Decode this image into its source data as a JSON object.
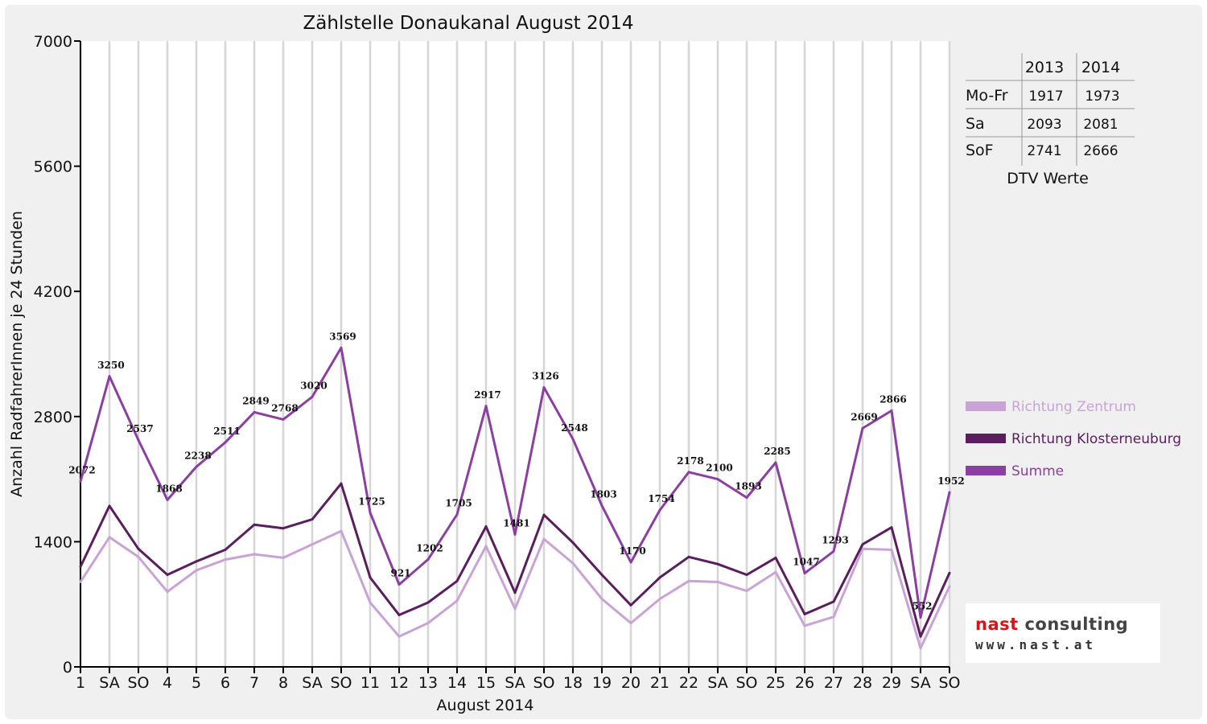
{
  "chart_data": {
    "type": "line",
    "title": "Zählstelle Donaukanal August 2014",
    "xlabel": "August 2014",
    "ylabel": "Anzahl RadfahrerInnen je 24 Stunden",
    "ylim": [
      0,
      7000
    ],
    "yticks": [
      "0",
      "1400",
      "2800",
      "4200",
      "5600",
      "7000"
    ],
    "grid": "vertical",
    "legend_position": "right",
    "categories": [
      "1",
      "SA",
      "SO",
      "4",
      "5",
      "6",
      "7",
      "8",
      "SA",
      "SO",
      "11",
      "12",
      "13",
      "14",
      "15",
      "SA",
      "SO",
      "18",
      "19",
      "20",
      "21",
      "22",
      "SA",
      "SO",
      "25",
      "26",
      "27",
      "28",
      "29",
      "SA",
      "SO"
    ],
    "category_colors": [
      "#111111",
      "#111111",
      "#e00000",
      "#111111",
      "#111111",
      "#111111",
      "#111111",
      "#111111",
      "#111111",
      "#e00000",
      "#111111",
      "#111111",
      "#111111",
      "#111111",
      "#e00000",
      "#111111",
      "#e00000",
      "#111111",
      "#111111",
      "#111111",
      "#111111",
      "#111111",
      "#111111",
      "#e00000",
      "#111111",
      "#111111",
      "#111111",
      "#111111",
      "#111111",
      "#111111",
      "#e00000"
    ],
    "series": [
      {
        "name": "Richtung Zentrum",
        "color": "#c9a3d6",
        "values": [
          950,
          1450,
          1230,
          840,
          1080,
          1200,
          1260,
          1220,
          1370,
          1520,
          720,
          340,
          490,
          740,
          1350,
          650,
          1430,
          1160,
          760,
          490,
          760,
          960,
          950,
          850,
          1060,
          460,
          560,
          1320,
          1310,
          210,
          900
        ]
      },
      {
        "name": "Richtung Klosterneuburg",
        "color": "#5a1e5e",
        "values": [
          1120,
          1800,
          1320,
          1030,
          1180,
          1310,
          1590,
          1550,
          1650,
          2050,
          1000,
          580,
          720,
          960,
          1570,
          830,
          1700,
          1390,
          1030,
          690,
          1000,
          1230,
          1150,
          1030,
          1220,
          590,
          730,
          1370,
          1560,
          340,
          1050
        ]
      },
      {
        "name": "Summe",
        "color": "#8b3fa0",
        "values": [
          2072,
          3250,
          2537,
          1868,
          2238,
          2511,
          2849,
          2768,
          3020,
          3569,
          1725,
          921,
          1202,
          1705,
          2917,
          1481,
          3126,
          2548,
          1803,
          1170,
          1754,
          2178,
          2100,
          1893,
          2285,
          1047,
          1293,
          2669,
          2866,
          552,
          1952
        ],
        "labels": [
          "2072",
          "3250",
          "2537",
          "1868",
          "2238",
          "2511",
          "2849",
          "2768",
          "3020",
          "3569",
          "1725",
          "921",
          "1202",
          "1705",
          "2917",
          "1481",
          "3126",
          "2548",
          "1803",
          "1170",
          "1754",
          "2178",
          "2100",
          "1893",
          "2285",
          "1047",
          "1293",
          "2669",
          "2866",
          "552",
          "1952"
        ]
      }
    ]
  },
  "dtv_table": {
    "columns": [
      "2013",
      "2014"
    ],
    "rows": [
      {
        "label": "Mo-Fr",
        "v2013": "1917",
        "v2014": "1973"
      },
      {
        "label": "Sa",
        "v2013": "2093",
        "v2014": "2081"
      },
      {
        "label": "SoF",
        "v2013": "2741",
        "v2014": "2666"
      }
    ],
    "caption": "DTV Werte"
  },
  "logo": {
    "word1": "nast",
    "word2": "consulting",
    "url": "www.nast.at",
    "color_red": "#d6141c",
    "color_gray": "#444444"
  }
}
